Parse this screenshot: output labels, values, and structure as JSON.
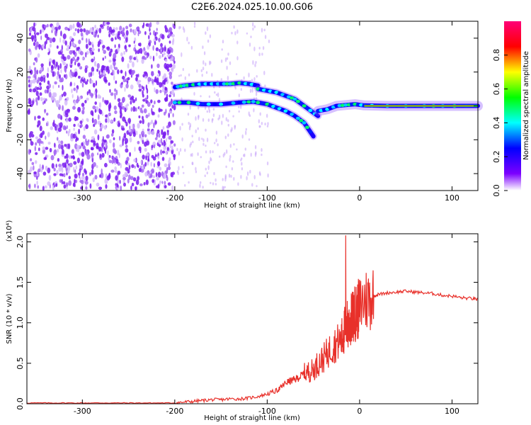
{
  "title": "C2E6.2024.025.10.00.G06",
  "chart_data": [
    {
      "type": "heatmap",
      "xlabel": "Height of straight line (km)",
      "ylabel": "Frequency (Hz)",
      "xlim": [
        -360,
        128
      ],
      "ylim": [
        -50,
        50
      ],
      "x_ticks": [
        -300,
        -200,
        -100,
        0,
        100
      ],
      "y_ticks": [
        -40,
        -20,
        0,
        20,
        40
      ],
      "colorbar": {
        "label": "Normalized spectral amplitude",
        "ticks": [
          0.0,
          0.2,
          0.4,
          0.6,
          0.8
        ],
        "range": [
          0,
          1
        ]
      },
      "tracks": [
        {
          "x": [
            -200,
            -190,
            -180,
            -170,
            -160,
            -150,
            -140,
            -130,
            -120,
            -110
          ],
          "y": [
            11,
            12,
            12.5,
            13,
            13,
            13,
            13,
            13.5,
            13,
            12
          ]
        },
        {
          "x": [
            -200,
            -185,
            -170,
            -150,
            -130,
            -115,
            -100,
            -90,
            -80,
            -70,
            -60,
            -50
          ],
          "y": [
            2,
            2,
            1,
            1,
            2,
            2.5,
            1,
            -1,
            -3,
            -6,
            -10,
            -18
          ]
        },
        {
          "x": [
            -110,
            -100,
            -90,
            -80,
            -70,
            -60,
            -50,
            -45
          ],
          "y": [
            10,
            9,
            8,
            6,
            4,
            0,
            -4,
            -6
          ]
        },
        {
          "x": [
            -45,
            -35,
            -25,
            -15,
            -5,
            5,
            30,
            60,
            90,
            128
          ],
          "y": [
            -3,
            -2,
            0,
            0.5,
            1,
            0.3,
            0,
            0,
            0,
            0
          ]
        }
      ]
    },
    {
      "type": "line",
      "xlabel": "Height of straight line (km)",
      "ylabel": "SNR (10 * v/v)",
      "y_multiplier": "(x10⁴)",
      "xlim": [
        -360,
        128
      ],
      "ylim": [
        0,
        2.1
      ],
      "x_ticks": [
        -300,
        -200,
        -100,
        0,
        100
      ],
      "y_ticks": [
        0.0,
        0.5,
        1.0,
        1.5,
        2.0
      ],
      "series": [
        {
          "color": "#e8302a",
          "x": [
            -360,
            -340,
            -320,
            -300,
            -280,
            -260,
            -240,
            -220,
            -200,
            -190,
            -180,
            -170,
            -160,
            -150,
            -140,
            -130,
            -120,
            -110,
            -100,
            -90,
            -85,
            -80,
            -75,
            -70,
            -65,
            -60,
            -55,
            -50,
            -45,
            -40,
            -35,
            -30,
            -25,
            -20,
            -18,
            -16,
            -14,
            -12,
            -10,
            -8,
            -6,
            -4,
            -2,
            0,
            5,
            10,
            15,
            20,
            30,
            40,
            50,
            60,
            70,
            80,
            90,
            100,
            110,
            120,
            128
          ],
          "y": [
            0.01,
            0.01,
            0.01,
            0.01,
            0.01,
            0.01,
            0.01,
            0.01,
            0.01,
            0.02,
            0.03,
            0.04,
            0.05,
            0.05,
            0.06,
            0.06,
            0.07,
            0.09,
            0.12,
            0.16,
            0.2,
            0.26,
            0.28,
            0.3,
            0.33,
            0.37,
            0.4,
            0.42,
            0.5,
            0.55,
            0.62,
            0.7,
            0.75,
            0.78,
            0.85,
            0.92,
            1.0,
            0.95,
            1.02,
            1.05,
            1.1,
            1.13,
            1.15,
            1.2,
            1.28,
            1.3,
            1.33,
            1.35,
            1.37,
            1.38,
            1.39,
            1.38,
            1.37,
            1.36,
            1.34,
            1.33,
            1.31,
            1.3,
            1.29
          ]
        }
      ]
    }
  ]
}
